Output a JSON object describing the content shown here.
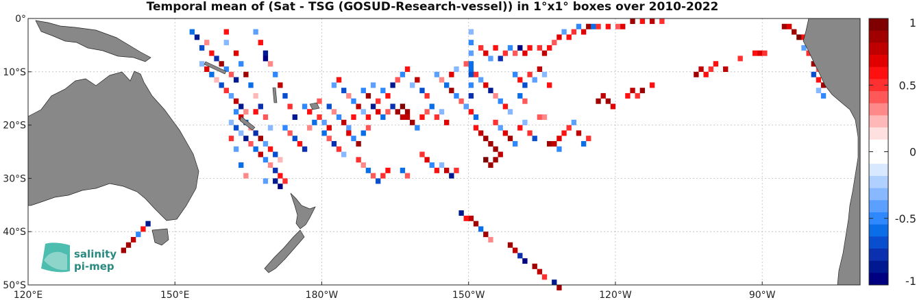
{
  "title": "Temporal mean of (Sat - TSG (GOSUD-Research-vessel)) in 1°x1° boxes over 2010-2022",
  "map": {
    "lon_range": [
      120,
      290
    ],
    "lat_range": [
      -50,
      0
    ],
    "land_color": "#888888",
    "ocean_color": "#ffffff",
    "grid": true
  },
  "x_ticks": [
    {
      "lon": 120,
      "label": "120°E"
    },
    {
      "lon": 150,
      "label": "150°E"
    },
    {
      "lon": 180,
      "label": "180°W"
    },
    {
      "lon": 210,
      "label": "150°W"
    },
    {
      "lon": 240,
      "label": "120°W"
    },
    {
      "lon": 270,
      "label": "90°W"
    }
  ],
  "y_ticks": [
    {
      "lat": 0,
      "label": "0°"
    },
    {
      "lat": -10,
      "label": "10°S"
    },
    {
      "lat": -20,
      "label": "20°S"
    },
    {
      "lat": -30,
      "label": "30°S"
    },
    {
      "lat": -40,
      "label": "40°S"
    },
    {
      "lat": -50,
      "label": "50°S"
    }
  ],
  "colorbar": {
    "range": [
      -1,
      1
    ],
    "tick_values": [
      1,
      0.5,
      0,
      -0.5,
      -1
    ],
    "tick_labels": [
      "1",
      "0.5",
      "0",
      "-0.5",
      "-1"
    ],
    "colors_top_to_bottom": [
      "#7f0000",
      "#a00000",
      "#c00000",
      "#e00000",
      "#ff1010",
      "#ff3030",
      "#ff5858",
      "#ff8888",
      "#ffb8b8",
      "#ffe0e0",
      "#ffffff",
      "#ffffff",
      "#d8e8ff",
      "#b0d0ff",
      "#88b8ff",
      "#5ca0ff",
      "#3088ff",
      "#0a6ee8",
      "#0a4ed0",
      "#0a30b0",
      "#001890",
      "#000080"
    ]
  },
  "logo": {
    "line1": "salinity",
    "line2": "pi-mep"
  },
  "chart_data": {
    "type": "heatmap",
    "title": "Temporal mean of (Sat - TSG (GOSUD-Research-vessel)) in 1°x1° boxes over 2010-2022",
    "xlabel": "",
    "ylabel": "",
    "x_range_lon": [
      120,
      290
    ],
    "y_range_lat": [
      -50,
      0
    ],
    "value_range": [
      -1,
      1
    ],
    "cells": [
      [
        153,
        -2,
        -0.6
      ],
      [
        154,
        -3,
        -0.9
      ],
      [
        155,
        -5,
        -0.7
      ],
      [
        156,
        -4,
        0.3
      ],
      [
        157,
        -6,
        0.6
      ],
      [
        158,
        -7,
        -0.8
      ],
      [
        159,
        -8,
        0.9
      ],
      [
        160,
        -9,
        -0.5
      ],
      [
        161,
        -10,
        0.4
      ],
      [
        162,
        -11,
        -0.9
      ],
      [
        155,
        -8,
        -0.3
      ],
      [
        156,
        -9,
        0.7
      ],
      [
        157,
        -10,
        -0.6
      ],
      [
        158,
        -11,
        0.2
      ],
      [
        159,
        -12,
        -0.7
      ],
      [
        160,
        -13,
        0.5
      ],
      [
        161,
        -14,
        -0.4
      ],
      [
        162,
        -15,
        0.8
      ],
      [
        163,
        -16,
        -0.9
      ],
      [
        164,
        -17,
        0.3
      ],
      [
        160,
        -2,
        0.6
      ],
      [
        160,
        -4,
        -0.3
      ],
      [
        162,
        -6,
        0.7
      ],
      [
        163,
        -8,
        -0.5
      ],
      [
        164,
        -10,
        0.9
      ],
      [
        165,
        -12,
        -0.6
      ],
      [
        166,
        -14,
        0.2
      ],
      [
        167,
        -16,
        -0.8
      ],
      [
        168,
        -18,
        0.4
      ],
      [
        169,
        -20,
        -0.3
      ],
      [
        166,
        -2,
        -0.4
      ],
      [
        167,
        -4,
        0.6
      ],
      [
        168,
        -6,
        -0.9
      ],
      [
        168,
        -7,
        -1.0
      ],
      [
        169,
        -8,
        0.3
      ],
      [
        170,
        -10,
        -0.5
      ],
      [
        171,
        -12,
        0.8
      ],
      [
        172,
        -14,
        -0.7
      ],
      [
        173,
        -16,
        0.5
      ],
      [
        174,
        -18,
        -0.9
      ],
      [
        162,
        -17,
        -0.5
      ],
      [
        163,
        -18,
        0.7
      ],
      [
        164,
        -19,
        -0.6
      ],
      [
        165,
        -20,
        0.3
      ],
      [
        166,
        -21,
        -0.8
      ],
      [
        167,
        -22,
        0.9
      ],
      [
        168,
        -23,
        -0.4
      ],
      [
        169,
        -24,
        0.6
      ],
      [
        170,
        -25,
        -0.7
      ],
      [
        171,
        -26,
        0.2
      ],
      [
        162,
        -20,
        -0.7
      ],
      [
        163,
        -21,
        -0.3
      ],
      [
        164,
        -22,
        -0.9
      ],
      [
        165,
        -23,
        0.4
      ],
      [
        166,
        -24,
        -0.6
      ],
      [
        167,
        -25,
        0.8
      ],
      [
        168,
        -26,
        -0.5
      ],
      [
        169,
        -27,
        0.3
      ],
      [
        170,
        -28,
        -0.8
      ],
      [
        171,
        -29,
        0.6
      ],
      [
        170,
        -30,
        -0.9
      ],
      [
        171,
        -31,
        -1.0
      ],
      [
        172,
        -30,
        0.5
      ],
      [
        168,
        -30,
        -0.4
      ],
      [
        164,
        -29,
        0.3
      ],
      [
        163,
        -27,
        -0.6
      ],
      [
        162,
        -24,
        -0.4
      ],
      [
        161,
        -22,
        0.5
      ],
      [
        161,
        -19,
        -0.3
      ],
      [
        166,
        -17,
        0.6
      ],
      [
        172,
        -20,
        -0.5
      ],
      [
        173,
        -21,
        0.4
      ],
      [
        174,
        -22,
        -0.7
      ],
      [
        175,
        -23,
        0.6
      ],
      [
        176,
        -24,
        -0.8
      ],
      [
        177,
        -20,
        0.3
      ],
      [
        178,
        -19,
        -0.6
      ],
      [
        179,
        -18,
        0.5
      ],
      [
        180,
        -19,
        -0.4
      ],
      [
        181,
        -20,
        0.7
      ],
      [
        176,
        -16,
        -0.5
      ],
      [
        177,
        -17,
        0.6
      ],
      [
        178,
        -16,
        -0.3
      ],
      [
        179,
        -15,
        0.4
      ],
      [
        181,
        -16,
        -0.7
      ],
      [
        182,
        -17,
        0.3
      ],
      [
        183,
        -18,
        -0.5
      ],
      [
        184,
        -19,
        0.8
      ],
      [
        185,
        -20,
        -0.4
      ],
      [
        186,
        -18,
        0.6
      ],
      [
        180,
        -21,
        -0.6
      ],
      [
        181,
        -22,
        0.4
      ],
      [
        182,
        -23,
        -0.8
      ],
      [
        183,
        -24,
        0.5
      ],
      [
        184,
        -25,
        -0.3
      ],
      [
        185,
        -21,
        0.7
      ],
      [
        186,
        -22,
        -0.5
      ],
      [
        187,
        -23,
        0.9
      ],
      [
        188,
        -21,
        -0.6
      ],
      [
        189,
        -20,
        0.4
      ],
      [
        182,
        -12,
        -0.4
      ],
      [
        183,
        -11,
        0.6
      ],
      [
        184,
        -13,
        -0.7
      ],
      [
        185,
        -14,
        0.3
      ],
      [
        186,
        -15,
        -0.5
      ],
      [
        187,
        -16,
        0.8
      ],
      [
        188,
        -17,
        -0.3
      ],
      [
        189,
        -18,
        0.6
      ],
      [
        190,
        -16,
        -0.9
      ],
      [
        191,
        -15,
        0.5
      ],
      [
        188,
        -13,
        -0.5
      ],
      [
        189,
        -14,
        0.9
      ],
      [
        190,
        -12,
        -0.4
      ],
      [
        191,
        -17,
        0.7
      ],
      [
        192,
        -18,
        -0.6
      ],
      [
        193,
        -17,
        0.4
      ],
      [
        194,
        -16,
        -0.8
      ],
      [
        195,
        -17,
        0.9
      ],
      [
        196,
        -18,
        0.8
      ],
      [
        197,
        -17,
        0.9
      ],
      [
        196,
        -16,
        1.0
      ],
      [
        197,
        -18,
        0.8
      ],
      [
        198,
        -19,
        0.9
      ],
      [
        199,
        -20,
        -0.5
      ],
      [
        200,
        -18,
        0.6
      ],
      [
        201,
        -17,
        0.4
      ],
      [
        202,
        -16,
        -0.6
      ],
      [
        203,
        -18,
        0.5
      ],
      [
        204,
        -17,
        -0.3
      ],
      [
        205,
        -19,
        0.7
      ],
      [
        192,
        -13,
        -0.5
      ],
      [
        193,
        -14,
        0.6
      ],
      [
        194,
        -12,
        -0.9
      ],
      [
        195,
        -11,
        0.4
      ],
      [
        196,
        -10,
        -0.5
      ],
      [
        197,
        -9,
        0.6
      ],
      [
        198,
        -12,
        -0.3
      ],
      [
        199,
        -11,
        0.8
      ],
      [
        200,
        -13,
        -0.7
      ],
      [
        201,
        -14,
        0.5
      ],
      [
        203,
        -10,
        -0.4
      ],
      [
        204,
        -11,
        0.3
      ],
      [
        205,
        -12,
        -0.6
      ],
      [
        206,
        -13,
        0.9
      ],
      [
        207,
        -14,
        -0.5
      ],
      [
        208,
        -15,
        0.4
      ],
      [
        209,
        -16,
        -0.8
      ],
      [
        210,
        -17,
        0.6
      ],
      [
        206,
        -10,
        0.7
      ],
      [
        207,
        -9,
        -0.3
      ],
      [
        209,
        -8,
        0.4
      ],
      [
        210,
        -9,
        -0.6
      ],
      [
        211,
        -10,
        0.5
      ],
      [
        212,
        -11,
        -0.4
      ],
      [
        213,
        -12,
        0.7
      ],
      [
        214,
        -13,
        -0.9
      ],
      [
        215,
        -14,
        0.3
      ],
      [
        216,
        -15,
        -0.5
      ],
      [
        217,
        -16,
        0.6
      ],
      [
        218,
        -17,
        -0.3
      ],
      [
        210,
        -2,
        -0.3
      ],
      [
        210,
        -4,
        -0.5
      ],
      [
        210,
        -6,
        -0.4
      ],
      [
        210,
        -8,
        -0.6
      ],
      [
        210,
        -10,
        -0.7
      ],
      [
        210,
        -12,
        -0.5
      ],
      [
        210,
        -14,
        -0.8
      ],
      [
        209,
        -16,
        -0.4
      ],
      [
        211,
        -18,
        -0.6
      ],
      [
        212,
        -5,
        0.5
      ],
      [
        213,
        -6,
        0.7
      ],
      [
        214,
        -7,
        -0.4
      ],
      [
        215,
        -5,
        0.6
      ],
      [
        216,
        -7,
        -0.8
      ],
      [
        217,
        -6,
        0.5
      ],
      [
        218,
        -5,
        -0.5
      ],
      [
        219,
        -6,
        0.4
      ],
      [
        220,
        -5,
        -1.0
      ],
      [
        221,
        -6,
        0.7
      ],
      [
        222,
        -5,
        0.6
      ],
      [
        224,
        -5,
        0.5
      ],
      [
        225,
        -6,
        0.8
      ],
      [
        226,
        -5,
        0.6
      ],
      [
        227,
        -4,
        0.4
      ],
      [
        228,
        -3,
        0.7
      ],
      [
        229,
        -2,
        -0.4
      ],
      [
        230,
        -3,
        0.6
      ],
      [
        231,
        -2,
        0.5
      ],
      [
        232,
        -1,
        -0.5
      ],
      [
        233,
        -2,
        0.7
      ],
      [
        234,
        -1,
        0.9
      ],
      [
        235,
        -1,
        -0.6
      ],
      [
        236,
        -1,
        0.5
      ],
      [
        238,
        -1,
        0.6
      ],
      [
        240,
        -1,
        0.4
      ],
      [
        241,
        -1,
        0.7
      ],
      [
        243,
        0,
        0.9
      ],
      [
        245,
        0,
        0.6
      ],
      [
        247,
        0,
        0.8
      ],
      [
        249,
        0,
        0.5
      ],
      [
        219,
        -10,
        -0.5
      ],
      [
        220,
        -11,
        0.6
      ],
      [
        221,
        -12,
        -0.7
      ],
      [
        222,
        -10,
        0.5
      ],
      [
        223,
        -11,
        -0.4
      ],
      [
        224,
        -9,
        0.8
      ],
      [
        225,
        -10,
        -0.3
      ],
      [
        226,
        -12,
        0.6
      ],
      [
        220,
        -14,
        -0.6
      ],
      [
        221,
        -15,
        0.4
      ],
      [
        215,
        -19,
        0.5
      ],
      [
        216,
        -20,
        -0.4
      ],
      [
        217,
        -21,
        0.7
      ],
      [
        218,
        -22,
        0.9
      ],
      [
        219,
        -23,
        -0.5
      ],
      [
        220,
        -20,
        0.6
      ],
      [
        221,
        -19,
        -0.3
      ],
      [
        222,
        -21,
        0.5
      ],
      [
        223,
        -22,
        -0.7
      ],
      [
        224,
        -18,
        0.4
      ],
      [
        211,
        -20,
        0.6
      ],
      [
        212,
        -21,
        0.8
      ],
      [
        213,
        -22,
        0.9
      ],
      [
        214,
        -23,
        0.9
      ],
      [
        215,
        -24,
        0.9
      ],
      [
        216,
        -25,
        0.8
      ],
      [
        215,
        -26,
        0.9
      ],
      [
        214,
        -27,
        0.9
      ],
      [
        213,
        -26,
        1.0
      ],
      [
        228,
        -22,
        0.7
      ],
      [
        229,
        -21,
        0.6
      ],
      [
        230,
        -20,
        0.5
      ],
      [
        231,
        -19,
        -0.4
      ],
      [
        232,
        -21,
        0.8
      ],
      [
        233,
        -23,
        -0.6
      ],
      [
        234,
        -22,
        0.5
      ],
      [
        226,
        -23,
        0.9
      ],
      [
        227,
        -23,
        0.8
      ],
      [
        228,
        -24,
        -0.5
      ],
      [
        225,
        -18,
        0.3
      ],
      [
        200,
        -25,
        0.5
      ],
      [
        201,
        -26,
        0.7
      ],
      [
        202,
        -27,
        -0.5
      ],
      [
        203,
        -28,
        0.6
      ],
      [
        204,
        -27,
        -0.3
      ],
      [
        205,
        -28,
        0.8
      ],
      [
        206,
        -29,
        -0.9
      ],
      [
        207,
        -28,
        0.5
      ],
      [
        196,
        -28,
        -0.6
      ],
      [
        197,
        -29,
        0.4
      ],
      [
        187,
        -26,
        0.5
      ],
      [
        188,
        -27,
        0.3
      ],
      [
        189,
        -28,
        -0.6
      ],
      [
        190,
        -29,
        0.4
      ],
      [
        191,
        -30,
        -0.7
      ],
      [
        192,
        -29,
        0.5
      ],
      [
        193,
        -28,
        0.6
      ],
      [
        208,
        -36,
        -0.9
      ],
      [
        209,
        -37,
        0.6
      ],
      [
        210,
        -37,
        0.8
      ],
      [
        211,
        -38,
        0.9
      ],
      [
        212,
        -39,
        -0.6
      ],
      [
        213,
        -40,
        0.9
      ],
      [
        214,
        -41,
        0.3
      ],
      [
        218,
        -42,
        0.9
      ],
      [
        219,
        -43,
        0.8
      ],
      [
        220,
        -44,
        -0.8
      ],
      [
        221,
        -45,
        -1.0
      ],
      [
        223,
        -46,
        0.9
      ],
      [
        224,
        -47,
        0.8
      ],
      [
        225,
        -48,
        0.5
      ],
      [
        227,
        -49,
        -0.9
      ],
      [
        228,
        -50,
        0.9
      ],
      [
        231,
        -52,
        -0.5
      ],
      [
        233,
        -53,
        0.6
      ],
      [
        232,
        -53,
        -1.0
      ],
      [
        236,
        -15,
        0.9
      ],
      [
        237,
        -14,
        0.8
      ],
      [
        238,
        -15,
        0.9
      ],
      [
        239,
        -16,
        0.7
      ],
      [
        242,
        -14,
        0.6
      ],
      [
        243,
        -13,
        0.8
      ],
      [
        244,
        -14,
        0.5
      ],
      [
        245,
        -13,
        0.9
      ],
      [
        247,
        -12,
        0.6
      ],
      [
        256,
        -10,
        0.9
      ],
      [
        257,
        -9,
        0.8
      ],
      [
        258,
        -10,
        0.6
      ],
      [
        259,
        -9,
        0.5
      ],
      [
        260,
        -8,
        0.6
      ],
      [
        262,
        -9,
        0.8
      ],
      [
        265,
        -7,
        0.5
      ],
      [
        268,
        -6,
        0.6
      ],
      [
        269,
        -6,
        0.7
      ],
      [
        270,
        -6,
        0.5
      ],
      [
        274,
        -1,
        0.9
      ],
      [
        275,
        -1,
        0.7
      ],
      [
        276,
        -2,
        0.9
      ],
      [
        277,
        -3,
        1.0
      ],
      [
        278,
        -3,
        0.6
      ],
      [
        279,
        -4,
        0.9
      ],
      [
        278,
        -5,
        -0.4
      ],
      [
        279,
        -6,
        0.5
      ],
      [
        280,
        -8,
        0.9
      ],
      [
        281,
        -9,
        0.4
      ],
      [
        280,
        -10,
        -0.7
      ],
      [
        281,
        -11,
        0.6
      ],
      [
        282,
        -12,
        0.9
      ],
      [
        281,
        -13,
        -0.3
      ],
      [
        282,
        -14,
        -0.5
      ],
      [
        139,
        -43,
        0.9
      ],
      [
        140,
        -42,
        0.9
      ],
      [
        141,
        -41,
        0.8
      ],
      [
        142,
        -40,
        -0.5
      ],
      [
        143,
        -39,
        0.6
      ],
      [
        144,
        -38,
        -0.9
      ]
    ]
  }
}
